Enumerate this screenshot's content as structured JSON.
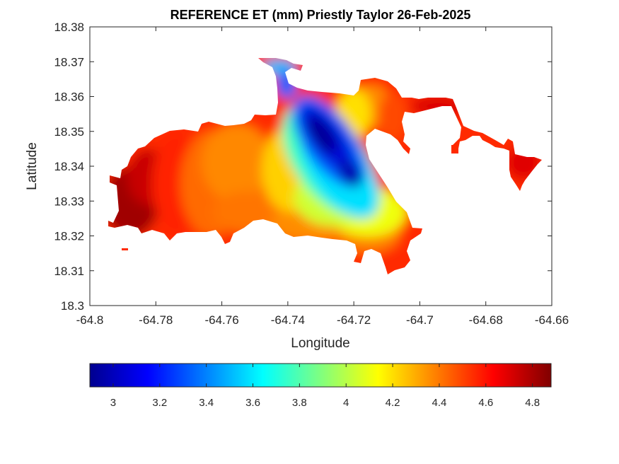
{
  "chart_data": {
    "type": "heatmap",
    "title": "REFERENCE ET (mm) Priestly Taylor 26-Feb-2025",
    "xlabel": "Longitude",
    "ylabel": "Latitude",
    "xlim": [
      -64.8,
      -64.66
    ],
    "ylim": [
      18.3,
      18.38
    ],
    "xticks": [
      "-64.8",
      "-64.78",
      "-64.76",
      "-64.74",
      "-64.72",
      "-64.7",
      "-64.68",
      "-64.66"
    ],
    "yticks": [
      "18.3",
      "18.31",
      "18.32",
      "18.33",
      "18.34",
      "18.35",
      "18.36",
      "18.37",
      "18.38"
    ],
    "colormap": "jet",
    "clim": [
      2.9,
      4.88
    ],
    "colorbar_ticks": [
      "3",
      "3.2",
      "3.4",
      "3.6",
      "3.8",
      "4",
      "4.2",
      "4.4",
      "4.6",
      "4.8"
    ],
    "colorbar_location": "bottom",
    "sample_values": [
      {
        "lon": -64.792,
        "lat": 18.332,
        "value": 4.85
      },
      {
        "lon": -64.785,
        "lat": 18.341,
        "value": 4.8
      },
      {
        "lon": -64.776,
        "lat": 18.334,
        "value": 4.65
      },
      {
        "lon": -64.765,
        "lat": 18.335,
        "value": 4.5
      },
      {
        "lon": -64.757,
        "lat": 18.343,
        "value": 4.4
      },
      {
        "lon": -64.748,
        "lat": 18.338,
        "value": 4.25
      },
      {
        "lon": -64.742,
        "lat": 18.345,
        "value": 4.05
      },
      {
        "lon": -64.736,
        "lat": 18.352,
        "value": 3.4
      },
      {
        "lon": -64.73,
        "lat": 18.347,
        "value": 2.95
      },
      {
        "lon": -64.722,
        "lat": 18.338,
        "value": 3.0
      },
      {
        "lon": -64.715,
        "lat": 18.328,
        "value": 3.9
      },
      {
        "lon": -64.72,
        "lat": 18.319,
        "value": 4.45
      },
      {
        "lon": -64.712,
        "lat": 18.356,
        "value": 4.3
      },
      {
        "lon": -64.705,
        "lat": 18.358,
        "value": 4.65
      },
      {
        "lon": -64.69,
        "lat": 18.358,
        "value": 4.7
      },
      {
        "lon": -64.668,
        "lat": 18.341,
        "value": 4.65
      },
      {
        "lon": -64.742,
        "lat": 18.368,
        "value": 3.55
      },
      {
        "lon": -64.712,
        "lat": 18.313,
        "value": 4.6
      }
    ]
  }
}
